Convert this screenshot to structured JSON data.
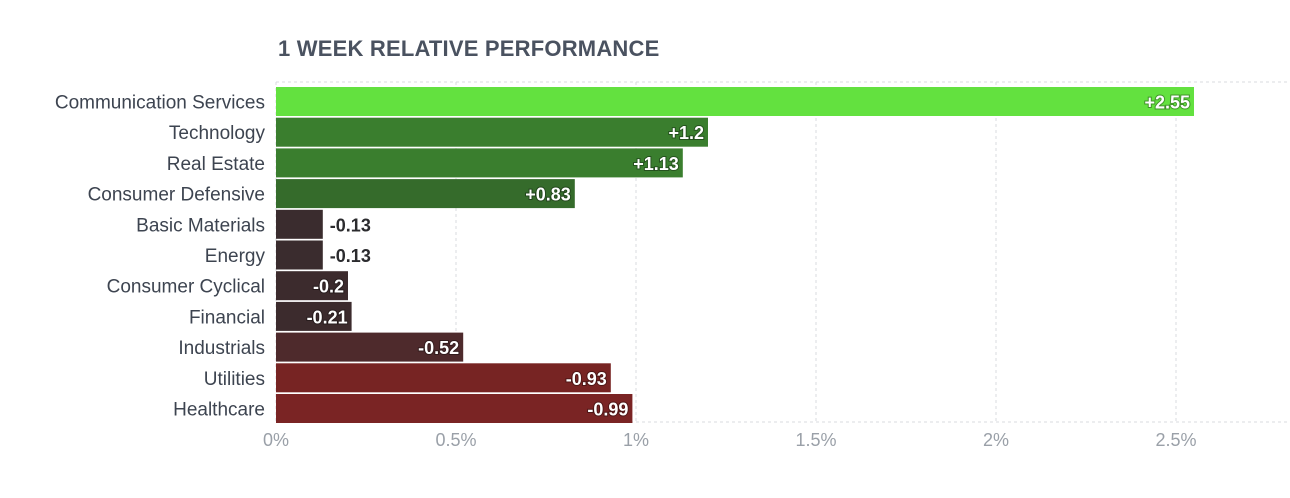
{
  "chart_data": {
    "type": "bar",
    "orientation": "horizontal",
    "title": "1 WEEK RELATIVE PERFORMANCE",
    "xlabel": "",
    "ylabel": "",
    "xlim": [
      0,
      2.85
    ],
    "grid": true,
    "x_ticks": [
      0,
      0.5,
      1,
      1.5,
      2,
      2.5
    ],
    "x_tick_labels": [
      "0%",
      "0.5%",
      "1%",
      "1.5%",
      "2%",
      "2.5%"
    ],
    "categories": [
      "Communication Services",
      "Technology",
      "Real Estate",
      "Consumer Defensive",
      "Basic Materials",
      "Energy",
      "Consumer Cyclical",
      "Financial",
      "Industrials",
      "Utilities",
      "Healthcare"
    ],
    "values": [
      2.55,
      1.2,
      1.13,
      0.83,
      -0.13,
      -0.13,
      -0.2,
      -0.21,
      -0.52,
      -0.93,
      -0.99
    ],
    "value_labels": [
      "+2.55",
      "+1.2",
      "+1.13",
      "+0.83",
      "-0.13",
      "-0.13",
      "-0.2",
      "-0.21",
      "-0.52",
      "-0.93",
      "-0.99"
    ],
    "colors": [
      "#63e13f",
      "#3a7e2e",
      "#3a7e2e",
      "#356b2b",
      "#3a2c2e",
      "#3a2c2e",
      "#3c2b2d",
      "#3c2b2d",
      "#4e2a2c",
      "#772423",
      "#7a2424"
    ]
  }
}
